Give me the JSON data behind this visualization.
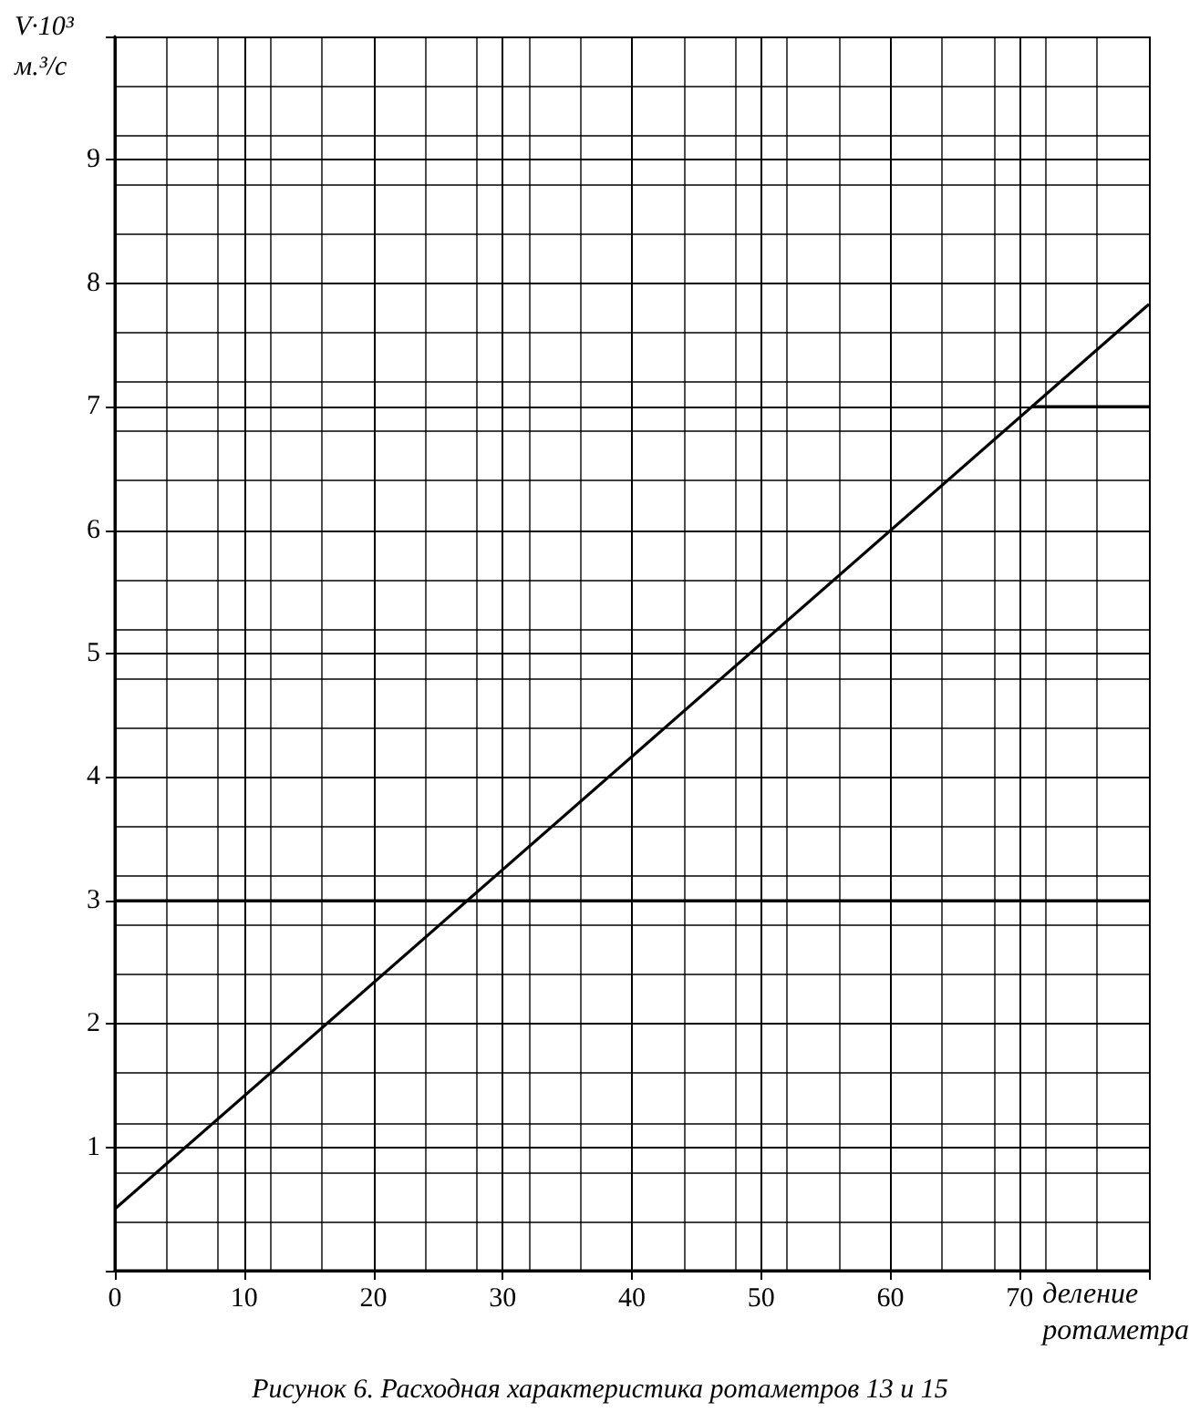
{
  "chart_data": {
    "type": "line",
    "xlabel": "деление\nротаметра",
    "ylabel": "V·10³\nм.³/с",
    "annotations": [
      "Рисунок 6. Расходная характеристика ротаметров 13 и 15"
    ],
    "series": [
      {
        "color": "#000000",
        "x": [
          0,
          80
        ],
        "values": [
          0.5,
          7.83
        ]
      },
      {
        "color": "#000000",
        "x": [
          70.9,
          80
        ],
        "values": [
          7,
          7
        ]
      }
    ],
    "ref_lines": [
      {
        "axis": "y",
        "value": 3,
        "color": "#000000"
      }
    ],
    "xlim": [
      0,
      80
    ],
    "xticks": [
      0,
      10,
      20,
      30,
      40,
      50,
      60,
      70,
      {
        "value": 80,
        "label": null
      }
    ],
    "ylim": [
      0,
      10
    ],
    "yticks": [
      {
        "value": 0,
        "label": null
      },
      1,
      2,
      3,
      4,
      5,
      6,
      7,
      8,
      9,
      {
        "value": 10,
        "label": null
      }
    ],
    "grid": true,
    "marker": "none",
    "line_style": "solid"
  }
}
